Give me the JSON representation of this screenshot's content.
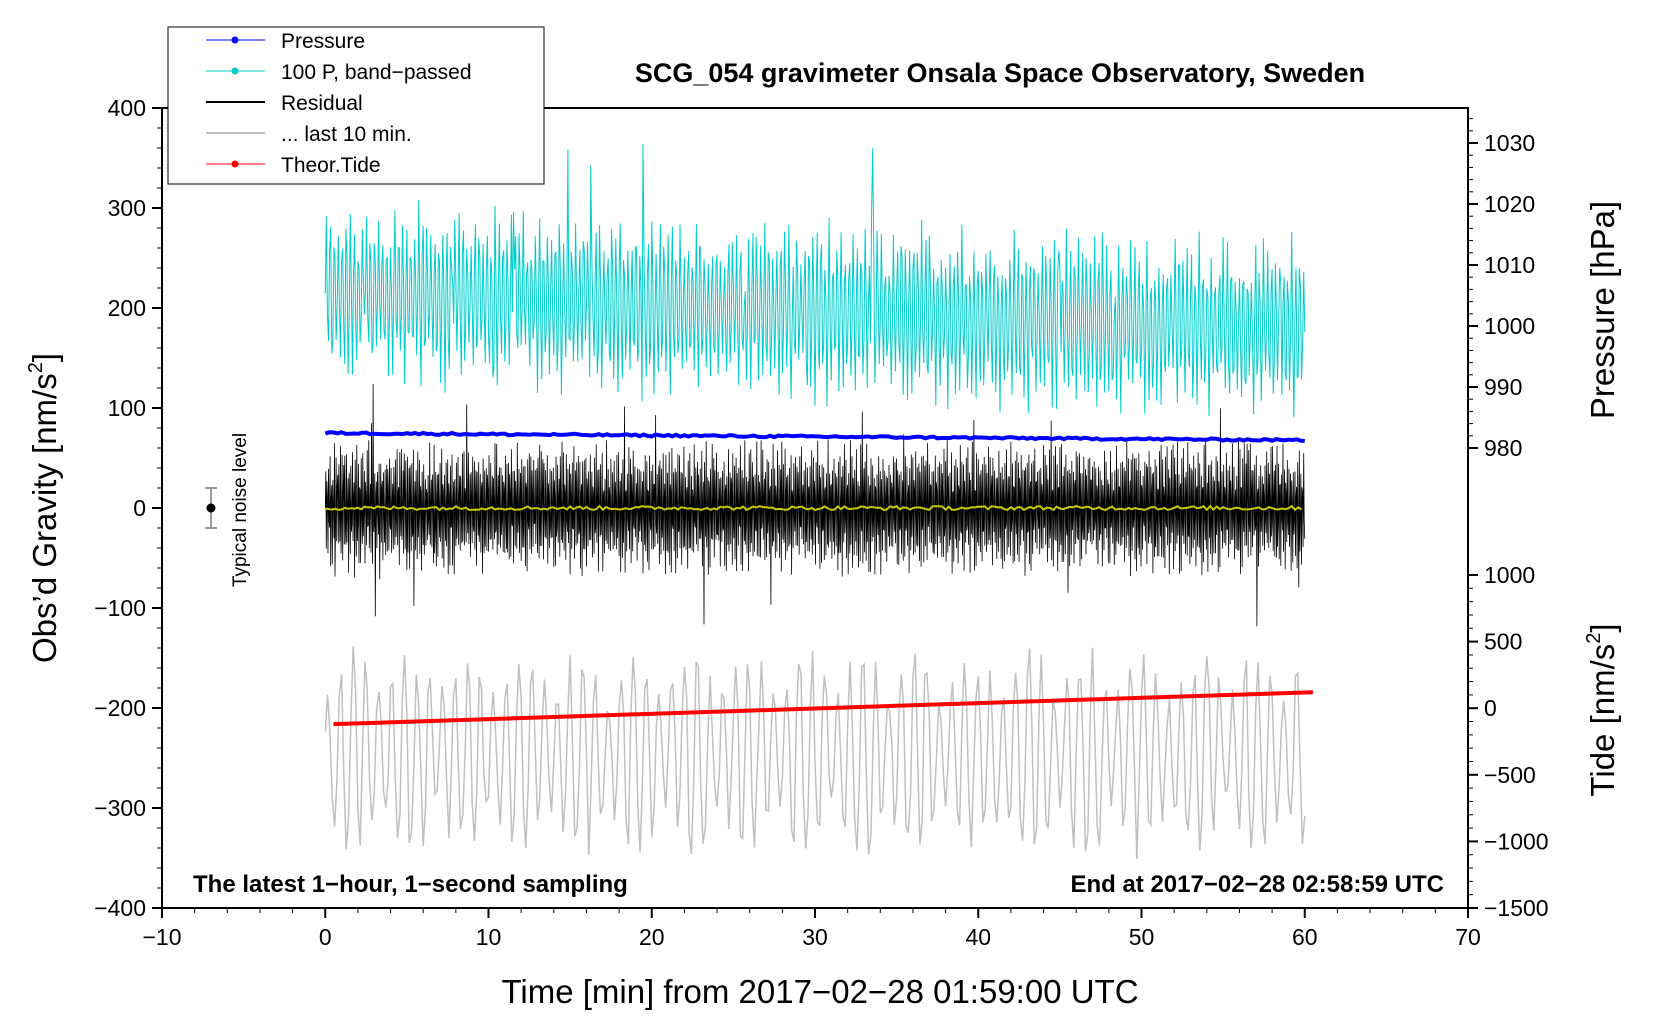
{
  "chart_data": {
    "type": "line",
    "title": "SCG_054 gravimeter Onsala Space Observatory, Sweden",
    "xlabel": "Time [min] from 2017−02−28 01:59:00 UTC",
    "ylabel_left": "Obs’d Gravity [nm/s",
    "ylabel_left_sup": "2",
    "ylabel_left_close": "]",
    "ylabel_right_pressure": "Pressure [hPa]",
    "ylabel_right_tide": "Tide [nm/s",
    "ylabel_right_tide_sup": "2",
    "ylabel_right_tide_close": "]",
    "xlim": [
      -10,
      70
    ],
    "ylim_left": [
      -400,
      400
    ],
    "x_ticks": [
      -10,
      0,
      10,
      20,
      30,
      40,
      50,
      60,
      70
    ],
    "x_tick_labels": [
      "−10",
      "0",
      "10",
      "20",
      "30",
      "40",
      "50",
      "60",
      "70"
    ],
    "y_ticks_left": [
      400,
      300,
      200,
      100,
      0,
      -100,
      -200,
      -300,
      -400
    ],
    "y_tick_labels_left": [
      "400",
      "300",
      "200",
      "100",
      "0",
      "−100",
      "−200",
      "−300",
      "−400"
    ],
    "pressure_ticks": [
      1030,
      1020,
      1010,
      1000,
      990,
      980
    ],
    "pressure_tick_labels": [
      "1030",
      "1020",
      "1010",
      "1000",
      "990",
      "980"
    ],
    "tide_ticks": [
      1000,
      500,
      0,
      -500,
      -1000,
      -1500
    ],
    "tide_tick_labels": [
      "1000",
      "500",
      "0",
      "−500",
      "−1000",
      "−1500"
    ],
    "annotation_left": "The latest 1−hour, 1−second sampling",
    "annotation_right": "End at 2017−02−28 02:58:59 UTC",
    "noise_label": "Typical noise level",
    "noise_bar": {
      "x": -7,
      "y": 0,
      "half_range": 20
    },
    "legend": [
      {
        "label": "Pressure",
        "color": "#0000ff",
        "marker": true
      },
      {
        "label": "100 P, band−passed",
        "color": "#00cccc",
        "marker": true
      },
      {
        "label": "Residual",
        "color": "#000000",
        "marker": false
      },
      {
        "label": "... last 10 min.",
        "color": "#c0c0c0",
        "marker": false
      },
      {
        "label": "Theor.Tide",
        "color": "#ff0000",
        "marker": true
      }
    ],
    "series": [
      {
        "name": "Pressure",
        "color": "#0000ff",
        "x": [
          0,
          10,
          20,
          30,
          40,
          50,
          60
        ],
        "y": [
          75,
          74,
          74,
          73,
          71,
          69,
          68
        ],
        "unit": "nm/s2 (plotted)"
      },
      {
        "name": "100 P, band-passed",
        "color": "#00cccc",
        "x_range": [
          0,
          60
        ],
        "center": 210,
        "amplitude": 110,
        "note": "noisy oscillation, spikes to ~400"
      },
      {
        "name": "Residual",
        "color": "#000000",
        "x_range": [
          0,
          60
        ],
        "center": 0,
        "amplitude": 80,
        "note": "noisy oscillation, spikes to ±150"
      },
      {
        "name": "Residual smoothed",
        "color": "#c8c800",
        "x": [
          0,
          60
        ],
        "y": [
          0,
          0
        ]
      },
      {
        "name": "... last 10 min.",
        "color": "#c0c0c0",
        "x_range": [
          0,
          60
        ],
        "center": -245,
        "amplitude": 75
      },
      {
        "name": "Theor.Tide",
        "color": "#ff0000",
        "x": [
          0.5,
          60.5
        ],
        "y_tide": [
          -120,
          120
        ],
        "unit": "nm/s2 (tide axis)"
      }
    ],
    "colors": {
      "pressure": "#0000ff",
      "band_passed": "#00cccc",
      "residual": "#000000",
      "residual_smooth": "#c8c800",
      "last10": "#c0c0c0",
      "tide": "#ff0000",
      "noise_bar": "#999999"
    }
  }
}
